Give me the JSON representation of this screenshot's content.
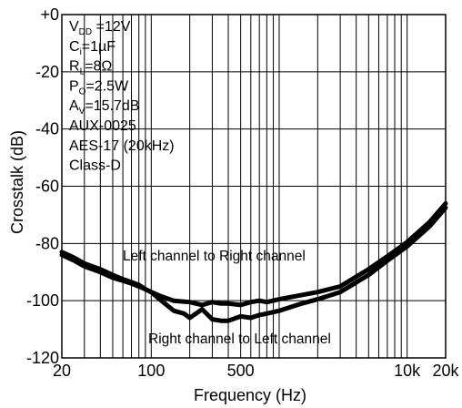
{
  "chart_data": {
    "type": "line",
    "title": "",
    "xlabel": "Frequency (Hz)",
    "ylabel": "Crosstalk (dB)",
    "x_scale": "log",
    "xlim": [
      20,
      20000
    ],
    "ylim": [
      -120,
      0
    ],
    "grid": true,
    "x_ticks": [
      {
        "label": "20",
        "value": 20
      },
      {
        "label": "100",
        "value": 100
      },
      {
        "label": "500",
        "value": 500
      },
      {
        "label": "10k",
        "value": 10000
      },
      {
        "label": "20k",
        "value": 20000
      }
    ],
    "y_ticks": [
      {
        "label": "+0",
        "value": 0
      },
      {
        "label": "-20",
        "value": -20
      },
      {
        "label": "-40",
        "value": -40
      },
      {
        "label": "-60",
        "value": -60
      },
      {
        "label": "-80",
        "value": -80
      },
      {
        "label": "-100",
        "value": -100
      },
      {
        "label": "-120",
        "value": -120
      }
    ],
    "conditions": [
      {
        "main": "V",
        "sub": "DD",
        "rest": " =12V"
      },
      {
        "main": "C",
        "sub": "i",
        "rest": "=1µF"
      },
      {
        "main": "R",
        "sub": "L",
        "rest": "=8Ω"
      },
      {
        "main": "P",
        "sub": "O",
        "rest": "=2.5W"
      },
      {
        "main": "A",
        "sub": "V",
        "rest": "=15.7dB"
      },
      {
        "main": "AUX-0025",
        "sub": "",
        "rest": ""
      },
      {
        "main": "AES-17 (20kHz)",
        "sub": "",
        "rest": ""
      },
      {
        "main": "Class-D",
        "sub": "",
        "rest": ""
      }
    ],
    "annotations": [
      "Left channel to Right channel",
      "Right channel to Left channel"
    ],
    "series": [
      {
        "x": [
          20,
          25,
          30,
          40,
          50,
          60,
          70,
          80,
          90,
          100,
          120,
          150,
          200,
          250,
          300,
          350,
          400,
          500,
          600,
          700,
          800,
          1000,
          1500,
          2000,
          3000,
          5000,
          7000,
          10000,
          15000,
          20000
        ],
        "values": [
          -84,
          -86,
          -88,
          -90,
          -92,
          -93,
          -94,
          -95,
          -96,
          -97,
          -98.5,
          -100,
          -100.5,
          -101.5,
          -100.5,
          -101,
          -101,
          -101.5,
          -100.5,
          -100,
          -100.5,
          -99.5,
          -98,
          -97,
          -95,
          -89,
          -84.5,
          -79.5,
          -72.5,
          -66
        ]
      },
      {
        "x": [
          20,
          25,
          30,
          40,
          50,
          60,
          70,
          80,
          90,
          100,
          120,
          150,
          180,
          200,
          250,
          300,
          350,
          400,
          500,
          600,
          700,
          800,
          1000,
          1500,
          2000,
          3000,
          5000,
          7000,
          10000,
          15000,
          20000
        ],
        "values": [
          -83,
          -85,
          -87,
          -89,
          -91,
          -92.5,
          -93.5,
          -94.5,
          -96,
          -97,
          -100,
          -103.5,
          -104.5,
          -106,
          -103,
          -106.5,
          -107,
          -107,
          -105.5,
          -106,
          -105,
          -104.5,
          -103.5,
          -101,
          -99.5,
          -97,
          -91,
          -86,
          -81,
          -74,
          -67.5
        ]
      }
    ]
  }
}
